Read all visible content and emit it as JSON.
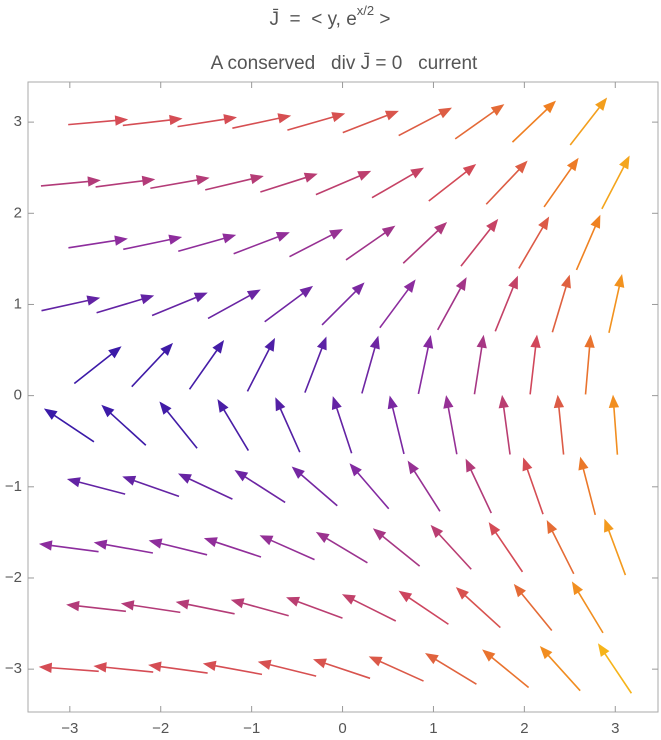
{
  "chart_data": {
    "type": "vector_field",
    "title": {
      "main": "J̄  =  < y, e",
      "superscript": "x/2",
      "end": " >"
    },
    "subtitle": "A conserved   div J̄ = 0   current",
    "xlim": [
      -3.46,
      3.47
    ],
    "ylim": [
      -3.47,
      3.44
    ],
    "xticks": [
      {
        "value": -3,
        "label": "−3"
      },
      {
        "value": -2,
        "label": "−2"
      },
      {
        "value": -1,
        "label": "−1"
      },
      0,
      1,
      2,
      3
    ],
    "yticks": [
      {
        "value": -3,
        "label": "−3"
      },
      {
        "value": -2,
        "label": "−2"
      },
      {
        "value": -1,
        "label": "−1"
      },
      0,
      1,
      2,
      3
    ],
    "colormap": [
      "#3a1aa8",
      "#8a2ca0",
      "#d2475a",
      "#ef7f22",
      "#f6b41a"
    ],
    "rows": [
      {
        "y": 3,
        "u": 3,
        "x": [
          -2.7,
          -2.1,
          -1.5,
          -0.9,
          -0.3,
          0.3,
          0.9,
          1.5,
          2.1,
          2.7
        ],
        "v": [
          0.26,
          0.35,
          0.47,
          0.64,
          0.86,
          1.16,
          1.57,
          2.12,
          2.86,
          3.86
        ]
      },
      {
        "y": 2.33,
        "u": 2.33,
        "x": [
          -3,
          -2.4,
          -1.8,
          -1.2,
          -0.6,
          0,
          0.6,
          1.2,
          1.8,
          2.4,
          3
        ],
        "v": [
          0.22,
          0.3,
          0.41,
          0.55,
          0.74,
          1,
          1.35,
          1.82,
          2.46,
          3.32,
          4.48
        ]
      },
      {
        "y": 1.67,
        "u": 1.67,
        "x": [
          -2.7,
          -2.1,
          -1.5,
          -0.9,
          -0.3,
          0.3,
          0.9,
          1.5,
          2.1,
          2.7
        ],
        "v": [
          0.26,
          0.35,
          0.47,
          0.64,
          0.86,
          1.16,
          1.57,
          2.12,
          2.86,
          3.86
        ]
      },
      {
        "y": 1,
        "u": 1,
        "x": [
          -3,
          -2.4,
          -1.8,
          -1.2,
          -0.6,
          0,
          0.6,
          1.2,
          1.8,
          2.4,
          3
        ],
        "v": [
          0.22,
          0.3,
          0.41,
          0.55,
          0.74,
          1,
          1.35,
          1.82,
          2.46,
          3.32,
          4.48
        ]
      },
      {
        "y": 0.33,
        "u": 0.33,
        "x": [
          -2.7,
          -2.1,
          -1.5,
          -0.9,
          -0.3,
          0.3,
          0.9,
          1.5,
          2.1,
          2.7
        ],
        "v": [
          0.26,
          0.35,
          0.47,
          0.64,
          0.86,
          1.16,
          1.57,
          2.12,
          2.86,
          3.86
        ]
      },
      {
        "y": -0.33,
        "u": -0.33,
        "x": [
          -3,
          -2.4,
          -1.8,
          -1.2,
          -0.6,
          0,
          0.6,
          1.2,
          1.8,
          2.4,
          3
        ],
        "v": [
          0.22,
          0.3,
          0.41,
          0.55,
          0.74,
          1,
          1.35,
          1.82,
          2.46,
          3.32,
          4.48
        ]
      },
      {
        "y": -1,
        "u": -1,
        "x": [
          -2.7,
          -2.1,
          -1.5,
          -0.9,
          -0.3,
          0.3,
          0.9,
          1.5,
          2.1,
          2.7
        ],
        "v": [
          0.26,
          0.35,
          0.47,
          0.64,
          0.86,
          1.16,
          1.57,
          2.12,
          2.86,
          3.86
        ]
      },
      {
        "y": -1.67,
        "u": -1.67,
        "x": [
          -3,
          -2.4,
          -1.8,
          -1.2,
          -0.6,
          0,
          0.6,
          1.2,
          1.8,
          2.4,
          3
        ],
        "v": [
          0.22,
          0.3,
          0.41,
          0.55,
          0.74,
          1,
          1.35,
          1.82,
          2.46,
          3.32,
          4.48
        ]
      },
      {
        "y": -2.33,
        "u": -2.33,
        "x": [
          -2.7,
          -2.1,
          -1.5,
          -0.9,
          -0.3,
          0.3,
          0.9,
          1.5,
          2.1,
          2.7
        ],
        "v": [
          0.26,
          0.35,
          0.47,
          0.64,
          0.86,
          1.16,
          1.57,
          2.12,
          2.86,
          3.86
        ]
      },
      {
        "y": -3,
        "u": -3,
        "x": [
          -3,
          -2.4,
          -1.8,
          -1.2,
          -0.6,
          0,
          0.6,
          1.2,
          1.8,
          2.4,
          3
        ],
        "v": [
          0.22,
          0.3,
          0.41,
          0.55,
          0.74,
          1,
          1.35,
          1.82,
          2.46,
          3.32,
          4.48
        ]
      }
    ]
  }
}
